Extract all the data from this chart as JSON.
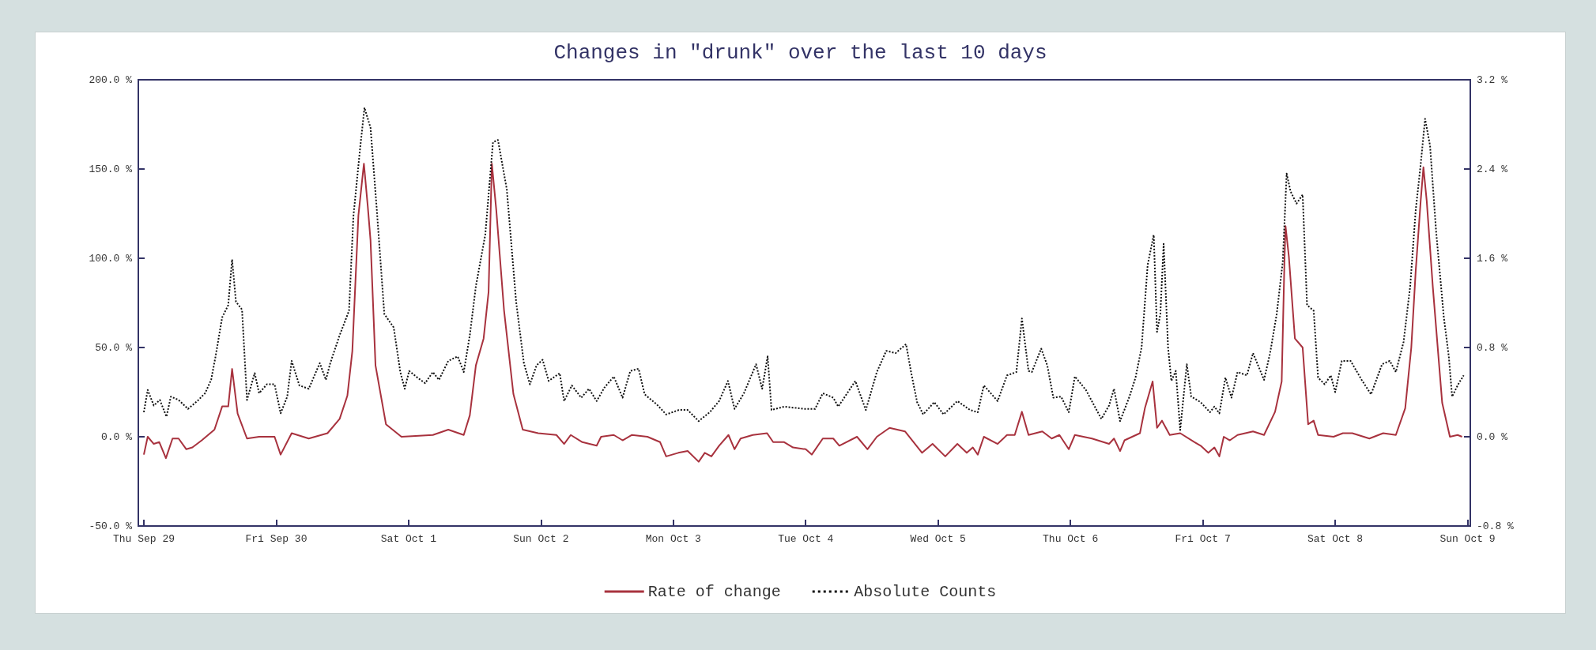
{
  "chart_data": {
    "type": "line",
    "title": "Changes in \"drunk\" over the last 10 days",
    "xlim": [
      "--09-28T23:00",
      "--10-09T00:30"
    ],
    "xticks": [
      {
        "value": "--09-29",
        "label": "Thu Sep 29"
      },
      {
        "value": "--09-30",
        "label": "Fri Sep 30"
      },
      {
        "value": "--10-01",
        "label": "Sat Oct 1"
      },
      {
        "value": "--10-02",
        "label": "Sun Oct 2"
      },
      {
        "value": "--10-03",
        "label": "Mon Oct 3"
      },
      {
        "value": "--10-04",
        "label": "Tue Oct 4"
      },
      {
        "value": "--10-05",
        "label": "Wed Oct 5"
      },
      {
        "value": "--10-06",
        "label": "Thu Oct 6"
      },
      {
        "value": "--10-07",
        "label": "Fri Oct 7"
      },
      {
        "value": "--10-08",
        "label": "Sat Oct 8"
      },
      {
        "value": "--10-09",
        "label": "Sun Oct 9"
      }
    ],
    "ylim": [
      -50,
      200
    ],
    "yticks": [
      {
        "value": -50,
        "label": "-50.0 %"
      },
      {
        "value": 0,
        "label": "0.0 %"
      },
      {
        "value": 50,
        "label": "50.0 %"
      },
      {
        "value": 100,
        "label": "100.0 %"
      },
      {
        "value": 150,
        "label": "150.0 %"
      },
      {
        "value": 200,
        "label": "200.0 %"
      }
    ],
    "y2lim": [
      -0.8,
      3.2
    ],
    "y2ticks": [
      {
        "value": -0.8,
        "label": "-0.8 %"
      },
      {
        "value": 0,
        "label": "0.0 %"
      },
      {
        "value": 0.8,
        "label": "0.8 %"
      },
      {
        "value": 1.6,
        "label": "1.6 %"
      },
      {
        "value": 2.4,
        "label": "2.4 %"
      },
      {
        "value": 3.2,
        "label": "3.2 %"
      }
    ],
    "grid": false,
    "legend": "bottom",
    "marker": "none",
    "series": [
      {
        "name": "Rate of change",
        "color": "#a8323e",
        "line_style": "solid",
        "x": [
          "--09-29T00:00",
          "--09-29T00:42",
          "--09-29T01:48",
          "--09-29T02:48",
          "--09-29T04:00",
          "--09-29T05:12",
          "--09-29T06:18",
          "--09-29T07:42",
          "--09-29T08:48",
          "--09-29T10:30",
          "--09-29T12:48",
          "--09-29T14:12",
          "--09-29T15:18",
          "--09-29T16:00",
          "--09-29T17:00",
          "--09-29T18:42",
          "--09-29T20:54",
          "--09-29T23:42",
          "--09-30T00:48",
          "--09-30T02:48",
          "--09-30T05:54",
          "--09-30T09:18",
          "--09-30T11:30",
          "--09-30T12:54",
          "--09-30T13:48",
          "--09-30T14:54",
          "--09-30T15:54",
          "--09-30T16:36",
          "--09-30T17:06",
          "--09-30T18:00",
          "--09-30T19:54",
          "--09-30T22:42",
          "--10-01T04:24",
          "--10-01T07:12",
          "--10-01T10:00",
          "--10-01T11:06",
          "--10-01T12:12",
          "--10-01T13:36",
          "--10-01T14:30",
          "--10-01T15:06",
          "--10-01T15:54",
          "--10-01T17:18",
          "--10-01T19:00",
          "--10-01T20:42",
          "--10-01T23:30",
          "--10-02T02:48",
          "--10-02T04:12",
          "--10-02T05:24",
          "--10-02T07:30",
          "--10-02T10:06",
          "--10-02T10:54",
          "--10-02T13:12",
          "--10-02T14:48",
          "--10-02T16:30",
          "--10-02T19:18",
          "--10-02T21:36",
          "--10-02T22:42",
          "--10-03T00:54",
          "--10-03T02:36",
          "--10-03T04:36",
          "--10-03T05:42",
          "--10-03T06:54",
          "--10-03T08:18",
          "--10-03T10:00",
          "--10-03T11:06",
          "--10-03T12:12",
          "--10-03T14:24",
          "--10-03T17:00",
          "--10-03T18:06",
          "--10-03T20:06",
          "--10-03T21:42",
          "--10-04T00:00",
          "--10-04T01:06",
          "--10-04T03:06",
          "--10-04T05:00",
          "--10-04T06:06",
          "--10-04T09:18",
          "--10-04T11:12",
          "--10-04T12:54",
          "--10-04T15:12",
          "--10-04T18:00",
          "--10-04T21:06",
          "--10-04T23:00",
          "--10-05T01:18",
          "--10-05T03:30",
          "--10-05T05:12",
          "--10-05T06:18",
          "--10-05T07:12",
          "--10-05T08:18",
          "--10-05T10:48",
          "--10-05T12:30",
          "--10-05T13:54",
          "--10-05T15:12",
          "--10-05T16:24",
          "--10-05T18:54",
          "--10-05T20:36",
          "--10-05T22:00",
          "--10-05T23:42",
          "--10-06T00:48",
          "--10-06T03:54",
          "--10-06T07:00",
          "--10-06T07:54",
          "--10-06T09:00",
          "--10-06T09:48",
          "--10-06T12:36",
          "--10-06T13:30",
          "--10-06T14:54",
          "--10-06T15:42",
          "--10-06T16:36",
          "--10-06T18:00",
          "--10-06T19:54",
          "--10-06T22:30",
          "--10-06T23:36",
          "--10-07T01:00",
          "--10-07T02:06",
          "--10-07T03:00",
          "--10-07T03:48",
          "--10-07T04:54",
          "--10-07T06:18",
          "--10-07T09:06",
          "--10-07T11:06",
          "--10-07T13:06",
          "--10-07T14:18",
          "--10-07T14:48",
          "--10-07T15:00",
          "--10-07T15:36",
          "--10-07T16:42",
          "--10-07T18:06",
          "--10-07T19:06",
          "--10-07T20:06",
          "--10-07T20:54",
          "--10-07T23:42",
          "--10-08T01:24",
          "--10-08T03:06",
          "--10-08T06:12",
          "--10-08T08:42",
          "--10-08T11:00",
          "--10-08T12:42",
          "--10-08T13:48",
          "--10-08T14:36",
          "--10-08T15:30",
          "--10-08T16:00",
          "--10-08T16:36",
          "--10-08T17:42",
          "--10-08T19:24",
          "--10-08T20:48",
          "--10-08T22:12",
          "--10-08T23:00"
        ],
        "values": [
          -10,
          0,
          -4,
          -3,
          -12,
          -1,
          -1,
          -7,
          -6,
          -2,
          4,
          17,
          17,
          38,
          13,
          -1,
          0,
          0,
          -10,
          2,
          -1,
          2,
          10,
          23,
          48,
          124,
          153,
          129,
          110,
          40,
          7,
          0,
          1,
          4,
          1,
          12,
          40,
          55,
          81,
          153,
          127,
          71,
          24,
          4,
          2,
          1,
          -4,
          1,
          -3,
          -5,
          0,
          1,
          -2,
          1,
          0,
          -3,
          -11,
          -9,
          -8,
          -14,
          -9,
          -11,
          -5,
          1,
          -7,
          -1,
          1,
          2,
          -3,
          -3,
          -6,
          -7,
          -10,
          -1,
          -1,
          -5,
          0,
          -7,
          0,
          5,
          3,
          -9,
          -4,
          -11,
          -4,
          -9,
          -6,
          -10,
          0,
          -4,
          1,
          1,
          14,
          1,
          3,
          -1,
          1,
          -7,
          1,
          -1,
          -4,
          -1,
          -8,
          -2,
          2,
          16,
          31,
          5,
          9,
          1,
          2,
          -3,
          -5,
          -9,
          -6,
          -11,
          0,
          -2,
          1,
          3,
          1,
          14,
          31,
          98,
          118,
          101,
          55,
          50,
          7,
          9,
          1,
          0,
          2,
          2,
          -1,
          2,
          1,
          16,
          50,
          93,
          132,
          151,
          132,
          84,
          19,
          0,
          1,
          0
        ]
      },
      {
        "name": "Absolute Counts",
        "color": "#111111",
        "line_style": "dotted",
        "axis": "y2",
        "x": [
          "--09-29T00:00",
          "--09-29T00:42",
          "--09-29T01:48",
          "--09-29T02:54",
          "--09-29T04:06",
          "--09-29T04:54",
          "--09-29T06:18",
          "--09-29T08:00",
          "--09-29T09:42",
          "--09-29T11:06",
          "--09-29T12:12",
          "--09-29T13:00",
          "--09-29T14:12",
          "--09-29T15:18",
          "--09-29T16:00",
          "--09-29T16:42",
          "--09-29T17:48",
          "--09-29T18:42",
          "--09-29T20:06",
          "--09-29T20:54",
          "--09-29T22:18",
          "--09-29T23:42",
          "--09-30T00:48",
          "--09-30T02:00",
          "--09-30T02:48",
          "--09-30T04:12",
          "--09-30T05:54",
          "--09-30T07:54",
          "--09-30T09:00",
          "--09-30T09:48",
          "--09-30T11:30",
          "--09-30T13:12",
          "--09-30T14:00",
          "--09-30T15:12",
          "--09-30T16:00",
          "--09-30T17:06",
          "--09-30T18:12",
          "--09-30T19:36",
          "--09-30T21:18",
          "--09-30T22:30",
          "--09-30T23:18",
          "--10-01T00:06",
          "--10-01T01:36",
          "--10-01T03:00",
          "--10-01T04:24",
          "--10-01T05:30",
          "--10-01T07:12",
          "--10-01T08:54",
          "--10-01T10:00",
          "--10-01T11:06",
          "--10-01T12:12",
          "--10-01T13:54",
          "--10-01T15:18",
          "--10-01T16:12",
          "--10-01T17:48",
          "--10-01T19:30",
          "--10-01T20:54",
          "--10-01T22:00",
          "--10-01T23:12",
          "--10-02T00:18",
          "--10-02T01:24",
          "--10-02T03:24",
          "--10-02T04:12",
          "--10-02T05:36",
          "--10-02T07:18",
          "--10-02T08:42",
          "--10-02T10:06",
          "--10-02T11:30",
          "--10-02T13:12",
          "--10-02T14:48",
          "--10-02T16:12",
          "--10-02T17:42",
          "--10-02T18:48",
          "--10-02T21:00",
          "--10-02T22:42",
          "--10-03T01:00",
          "--10-03T02:36",
          "--10-03T04:36",
          "--10-03T06:36",
          "--10-03T08:18",
          "--10-03T09:54",
          "--10-03T11:06",
          "--10-03T12:48",
          "--10-03T15:00",
          "--10-03T16:06",
          "--10-03T17:06",
          "--10-03T17:48",
          "--10-03T20:06",
          "--10-03T23:42",
          "--10-04T01:42",
          "--10-04T03:06",
          "--10-04T05:00",
          "--10-04T05:54",
          "--10-04T09:00",
          "--10-04T10:54",
          "--10-04T12:54",
          "--10-04T14:36",
          "--10-04T16:18",
          "--10-04T18:12",
          "--10-04T19:06",
          "--10-04T20:12",
          "--10-04T21:18",
          "--10-04T23:18",
          "--10-05T01:00",
          "--10-05T03:30",
          "--10-05T05:48",
          "--10-05T07:12",
          "--10-05T08:18",
          "--10-05T10:48",
          "--10-05T12:30",
          "--10-05T14:12",
          "--10-05T15:12",
          "--10-05T16:24",
          "--10-05T17:00",
          "--10-05T18:42",
          "--10-05T19:48",
          "--10-05T20:54",
          "--10-05T22:18",
          "--10-05T23:42",
          "--10-06T00:48",
          "--10-06T02:48",
          "--10-06T05:36",
          "--10-06T07:00",
          "--10-06T07:54",
          "--10-06T09:00",
          "--10-06T10:42",
          "--10-06T11:48",
          "--10-06T12:54",
          "--10-06T14:00",
          "--10-06T15:06",
          "--10-06T15:42",
          "--10-06T16:18",
          "--10-06T16:54",
          "--10-06T17:42",
          "--10-06T18:18",
          "--10-06T19:06",
          "--10-06T19:54",
          "--10-06T21:06",
          "--10-06T21:54",
          "--10-06T23:36",
          "--10-07T01:18",
          "--10-07T02:06",
          "--10-07T03:00",
          "--10-07T04:06",
          "--10-07T05:12",
          "--10-07T06:18",
          "--10-07T08:00",
          "--10-07T09:06",
          "--10-07T11:06",
          "--10-07T12:12",
          "--10-07T13:24",
          "--10-07T14:30",
          "--10-07T15:12",
          "--10-07T15:54",
          "--10-07T17:00",
          "--10-07T18:06",
          "--10-07T18:54",
          "--10-07T20:06",
          "--10-07T20:54",
          "--10-07T22:06",
          "--10-07T23:12",
          "--10-08T00:00",
          "--10-08T01:12",
          "--10-08T02:48",
          "--10-08T04:48",
          "--10-08T06:30",
          "--10-08T08:30",
          "--10-08T09:54",
          "--10-08T11:00",
          "--10-08T12:24",
          "--10-08T13:36",
          "--10-08T14:36",
          "--10-08T15:30",
          "--10-08T16:18",
          "--10-08T17:12",
          "--10-08T18:18",
          "--10-08T19:42",
          "--10-08T20:36",
          "--10-08T21:12",
          "--10-08T22:18",
          "--10-08T23:18"
        ],
        "values": [
          0.22,
          0.42,
          0.28,
          0.33,
          0.18,
          0.36,
          0.33,
          0.25,
          0.32,
          0.39,
          0.51,
          0.72,
          1.07,
          1.18,
          1.59,
          1.21,
          1.14,
          0.33,
          0.57,
          0.39,
          0.47,
          0.47,
          0.21,
          0.36,
          0.68,
          0.46,
          0.43,
          0.66,
          0.51,
          0.66,
          0.91,
          1.13,
          1.98,
          2.58,
          2.95,
          2.77,
          2.06,
          1.1,
          0.98,
          0.58,
          0.43,
          0.59,
          0.53,
          0.48,
          0.58,
          0.51,
          0.68,
          0.72,
          0.58,
          0.91,
          1.35,
          1.81,
          2.64,
          2.66,
          2.22,
          1.21,
          0.66,
          0.47,
          0.64,
          0.69,
          0.5,
          0.57,
          0.32,
          0.46,
          0.35,
          0.43,
          0.32,
          0.44,
          0.54,
          0.35,
          0.59,
          0.61,
          0.38,
          0.29,
          0.2,
          0.24,
          0.24,
          0.14,
          0.22,
          0.32,
          0.5,
          0.25,
          0.39,
          0.65,
          0.43,
          0.72,
          0.24,
          0.27,
          0.25,
          0.25,
          0.39,
          0.35,
          0.27,
          0.5,
          0.24,
          0.58,
          0.77,
          0.75,
          0.83,
          0.58,
          0.31,
          0.2,
          0.31,
          0.2,
          0.32,
          0.24,
          0.22,
          0.46,
          0.32,
          0.55,
          0.58,
          1.06,
          0.59,
          0.58,
          0.79,
          0.64,
          0.35,
          0.36,
          0.22,
          0.54,
          0.42,
          0.16,
          0.28,
          0.43,
          0.14,
          0.36,
          0.53,
          0.8,
          1.54,
          1.81,
          0.94,
          1.1,
          1.73,
          0.8,
          0.5,
          0.59,
          0.06,
          0.65,
          0.36,
          0.31,
          0.22,
          0.27,
          0.21,
          0.53,
          0.35,
          0.58,
          0.55,
          0.75,
          0.51,
          0.75,
          1.1,
          1.57,
          2.36,
          2.2,
          2.09,
          2.17,
          1.18,
          1.13,
          0.53,
          0.47,
          0.55,
          0.4,
          0.68,
          0.68,
          0.51,
          0.38,
          0.65,
          0.68,
          0.58,
          0.85,
          1.35,
          2.03,
          2.44,
          2.85,
          2.61,
          1.84,
          1.07,
          0.72,
          0.36,
          0.47,
          0.55
        ]
      }
    ]
  }
}
